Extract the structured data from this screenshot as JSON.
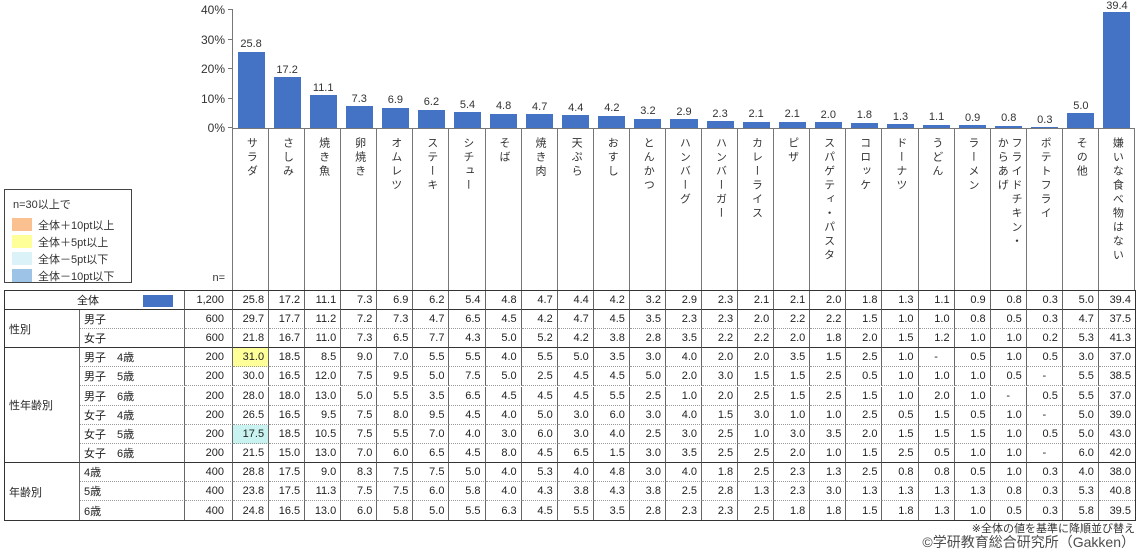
{
  "chart_data": {
    "type": "bar",
    "title": "",
    "unit": "%",
    "ylim": [
      0,
      40
    ],
    "y_ticks": [
      {
        "value": 0,
        "label": "0%"
      },
      {
        "value": 10,
        "label": "10%"
      },
      {
        "value": 20,
        "label": "20%"
      },
      {
        "value": 30,
        "label": "30%"
      },
      {
        "value": 40,
        "label": "40%"
      }
    ],
    "grid": false,
    "legend_position": "left",
    "bar_color": "#4472C4",
    "categories": [
      "サラダ",
      "さしみ",
      "焼き魚",
      "卵焼き",
      "オムレツ",
      "ステーキ",
      "シチュー",
      "そば",
      "焼き肉",
      "天ぷら",
      "おすし",
      "とんかつ",
      "ハンバーグ",
      "ハンバーガー",
      "カレーライス",
      "ピザ",
      "スパゲティ・パスタ",
      "コロッケ",
      "ドーナツ",
      "うどん",
      "ラーメン",
      "フライドチキン・\nからあげ",
      "ポテトフライ",
      "その他",
      "嫌いな食べ物はない"
    ],
    "values": [
      25.8,
      17.2,
      11.1,
      7.3,
      6.9,
      6.2,
      5.4,
      4.8,
      4.7,
      4.4,
      4.2,
      3.2,
      2.9,
      2.3,
      2.1,
      2.1,
      2.0,
      1.8,
      1.3,
      1.1,
      0.9,
      0.8,
      0.3,
      5.0,
      39.4
    ]
  },
  "legend": {
    "title": "n=30以上で",
    "items": [
      {
        "key": "plus10",
        "label": "全体＋10pt以上",
        "color": "#FAC090"
      },
      {
        "key": "plus5",
        "label": "全体＋5pt以上",
        "color": "#FFFF99"
      },
      {
        "key": "minus5",
        "label": "全体－5pt以下",
        "color": "#DAF2F8"
      },
      {
        "key": "minus10",
        "label": "全体－10pt以下",
        "color": "#9DC3E6"
      }
    ]
  },
  "table": {
    "n_header": "n=",
    "overall_swatch_color": "#4472C4",
    "highlight_colors": {
      "plus10": "#FAC090",
      "plus5": "#FFFF99",
      "minus5": "#C9F3F1",
      "minus10": "#9DC3E6"
    },
    "groups": [
      {
        "label": "",
        "rows": [
          {
            "label": "全体",
            "n": "1,200",
            "swatch": true,
            "values": [
              "25.8",
              "17.2",
              "11.1",
              "7.3",
              "6.9",
              "6.2",
              "5.4",
              "4.8",
              "4.7",
              "4.4",
              "4.2",
              "3.2",
              "2.9",
              "2.3",
              "2.1",
              "2.1",
              "2.0",
              "1.8",
              "1.3",
              "1.1",
              "0.9",
              "0.8",
              "0.3",
              "5.0",
              "39.4"
            ]
          }
        ]
      },
      {
        "label": "性別",
        "rows": [
          {
            "label": "男子",
            "n": "600",
            "values": [
              "29.7",
              "17.7",
              "11.2",
              "7.2",
              "7.3",
              "4.7",
              "6.5",
              "4.5",
              "4.2",
              "4.7",
              "4.5",
              "3.5",
              "2.3",
              "2.3",
              "2.0",
              "2.2",
              "2.2",
              "1.5",
              "1.0",
              "1.0",
              "0.8",
              "0.5",
              "0.3",
              "4.7",
              "37.5"
            ]
          },
          {
            "label": "女子",
            "n": "600",
            "values": [
              "21.8",
              "16.7",
              "11.0",
              "7.3",
              "6.5",
              "7.7",
              "4.3",
              "5.0",
              "5.2",
              "4.2",
              "3.8",
              "2.8",
              "3.5",
              "2.2",
              "2.2",
              "2.0",
              "1.8",
              "2.0",
              "1.5",
              "1.2",
              "1.0",
              "1.0",
              "0.2",
              "5.3",
              "41.3"
            ]
          }
        ]
      },
      {
        "label": "性年齢別",
        "rows": [
          {
            "label": "男子　4歳",
            "n": "200",
            "highlights": {
              "0": "plus5"
            },
            "values": [
              "31.0",
              "18.5",
              "8.5",
              "9.0",
              "7.0",
              "5.5",
              "5.5",
              "4.0",
              "5.5",
              "5.0",
              "3.5",
              "3.0",
              "4.0",
              "2.0",
              "2.0",
              "3.5",
              "1.5",
              "2.5",
              "1.0",
              "-",
              "0.5",
              "1.0",
              "0.5",
              "3.0",
              "37.0"
            ]
          },
          {
            "label": "男子　5歳",
            "n": "200",
            "values": [
              "30.0",
              "16.5",
              "12.0",
              "7.5",
              "9.5",
              "5.0",
              "7.5",
              "5.0",
              "2.5",
              "4.5",
              "4.5",
              "5.0",
              "2.0",
              "3.0",
              "1.5",
              "1.5",
              "2.5",
              "0.5",
              "1.0",
              "1.0",
              "1.0",
              "0.5",
              "-",
              "5.5",
              "38.5"
            ]
          },
          {
            "label": "男子　6歳",
            "n": "200",
            "values": [
              "28.0",
              "18.0",
              "13.0",
              "5.0",
              "5.5",
              "3.5",
              "6.5",
              "4.5",
              "4.5",
              "4.5",
              "5.5",
              "2.5",
              "1.0",
              "2.0",
              "2.5",
              "1.5",
              "2.5",
              "1.5",
              "1.0",
              "2.0",
              "1.0",
              "-",
              "0.5",
              "5.5",
              "37.0"
            ]
          },
          {
            "label": "女子　4歳",
            "n": "200",
            "values": [
              "26.5",
              "16.5",
              "9.5",
              "7.5",
              "8.0",
              "9.5",
              "4.5",
              "4.0",
              "5.0",
              "3.0",
              "6.0",
              "3.0",
              "4.0",
              "1.5",
              "3.0",
              "1.0",
              "1.0",
              "2.5",
              "0.5",
              "1.5",
              "0.5",
              "1.0",
              "-",
              "5.0",
              "39.0"
            ]
          },
          {
            "label": "女子　5歳",
            "n": "200",
            "highlights": {
              "0": "minus5"
            },
            "values": [
              "17.5",
              "18.5",
              "10.5",
              "7.5",
              "5.5",
              "7.0",
              "4.0",
              "3.0",
              "6.0",
              "3.0",
              "4.0",
              "2.5",
              "3.0",
              "2.5",
              "1.0",
              "3.0",
              "3.5",
              "2.0",
              "1.5",
              "1.5",
              "1.5",
              "1.0",
              "0.5",
              "5.0",
              "43.0"
            ]
          },
          {
            "label": "女子　6歳",
            "n": "200",
            "values": [
              "21.5",
              "15.0",
              "13.0",
              "7.0",
              "6.0",
              "6.5",
              "4.5",
              "8.0",
              "4.5",
              "6.5",
              "1.5",
              "3.0",
              "3.5",
              "2.5",
              "2.5",
              "2.0",
              "1.0",
              "1.5",
              "2.5",
              "0.5",
              "1.0",
              "1.0",
              "-",
              "6.0",
              "42.0"
            ]
          }
        ]
      },
      {
        "label": "年齢別",
        "rows": [
          {
            "label": "4歳",
            "n": "400",
            "values": [
              "28.8",
              "17.5",
              "9.0",
              "8.3",
              "7.5",
              "7.5",
              "5.0",
              "4.0",
              "5.3",
              "4.0",
              "4.8",
              "3.0",
              "4.0",
              "1.8",
              "2.5",
              "2.3",
              "1.3",
              "2.5",
              "0.8",
              "0.8",
              "0.5",
              "1.0",
              "0.3",
              "4.0",
              "38.0"
            ]
          },
          {
            "label": "5歳",
            "n": "400",
            "values": [
              "23.8",
              "17.5",
              "11.3",
              "7.5",
              "7.5",
              "6.0",
              "5.8",
              "4.0",
              "4.3",
              "3.8",
              "4.3",
              "3.8",
              "2.5",
              "2.8",
              "1.3",
              "2.3",
              "3.0",
              "1.3",
              "1.3",
              "1.3",
              "1.3",
              "0.8",
              "0.3",
              "5.3",
              "40.8"
            ]
          },
          {
            "label": "6歳",
            "n": "400",
            "values": [
              "24.8",
              "16.5",
              "13.0",
              "6.0",
              "5.8",
              "5.0",
              "5.5",
              "6.3",
              "4.5",
              "5.5",
              "3.5",
              "2.8",
              "2.3",
              "2.3",
              "2.5",
              "1.8",
              "1.8",
              "1.5",
              "1.8",
              "1.3",
              "1.0",
              "0.5",
              "0.3",
              "5.8",
              "39.5"
            ]
          }
        ]
      }
    ]
  },
  "footnotes": {
    "sort_note": "※全体の値を基準に降順並び替え",
    "copyright": "©学研教育総合研究所（Gakken）"
  }
}
